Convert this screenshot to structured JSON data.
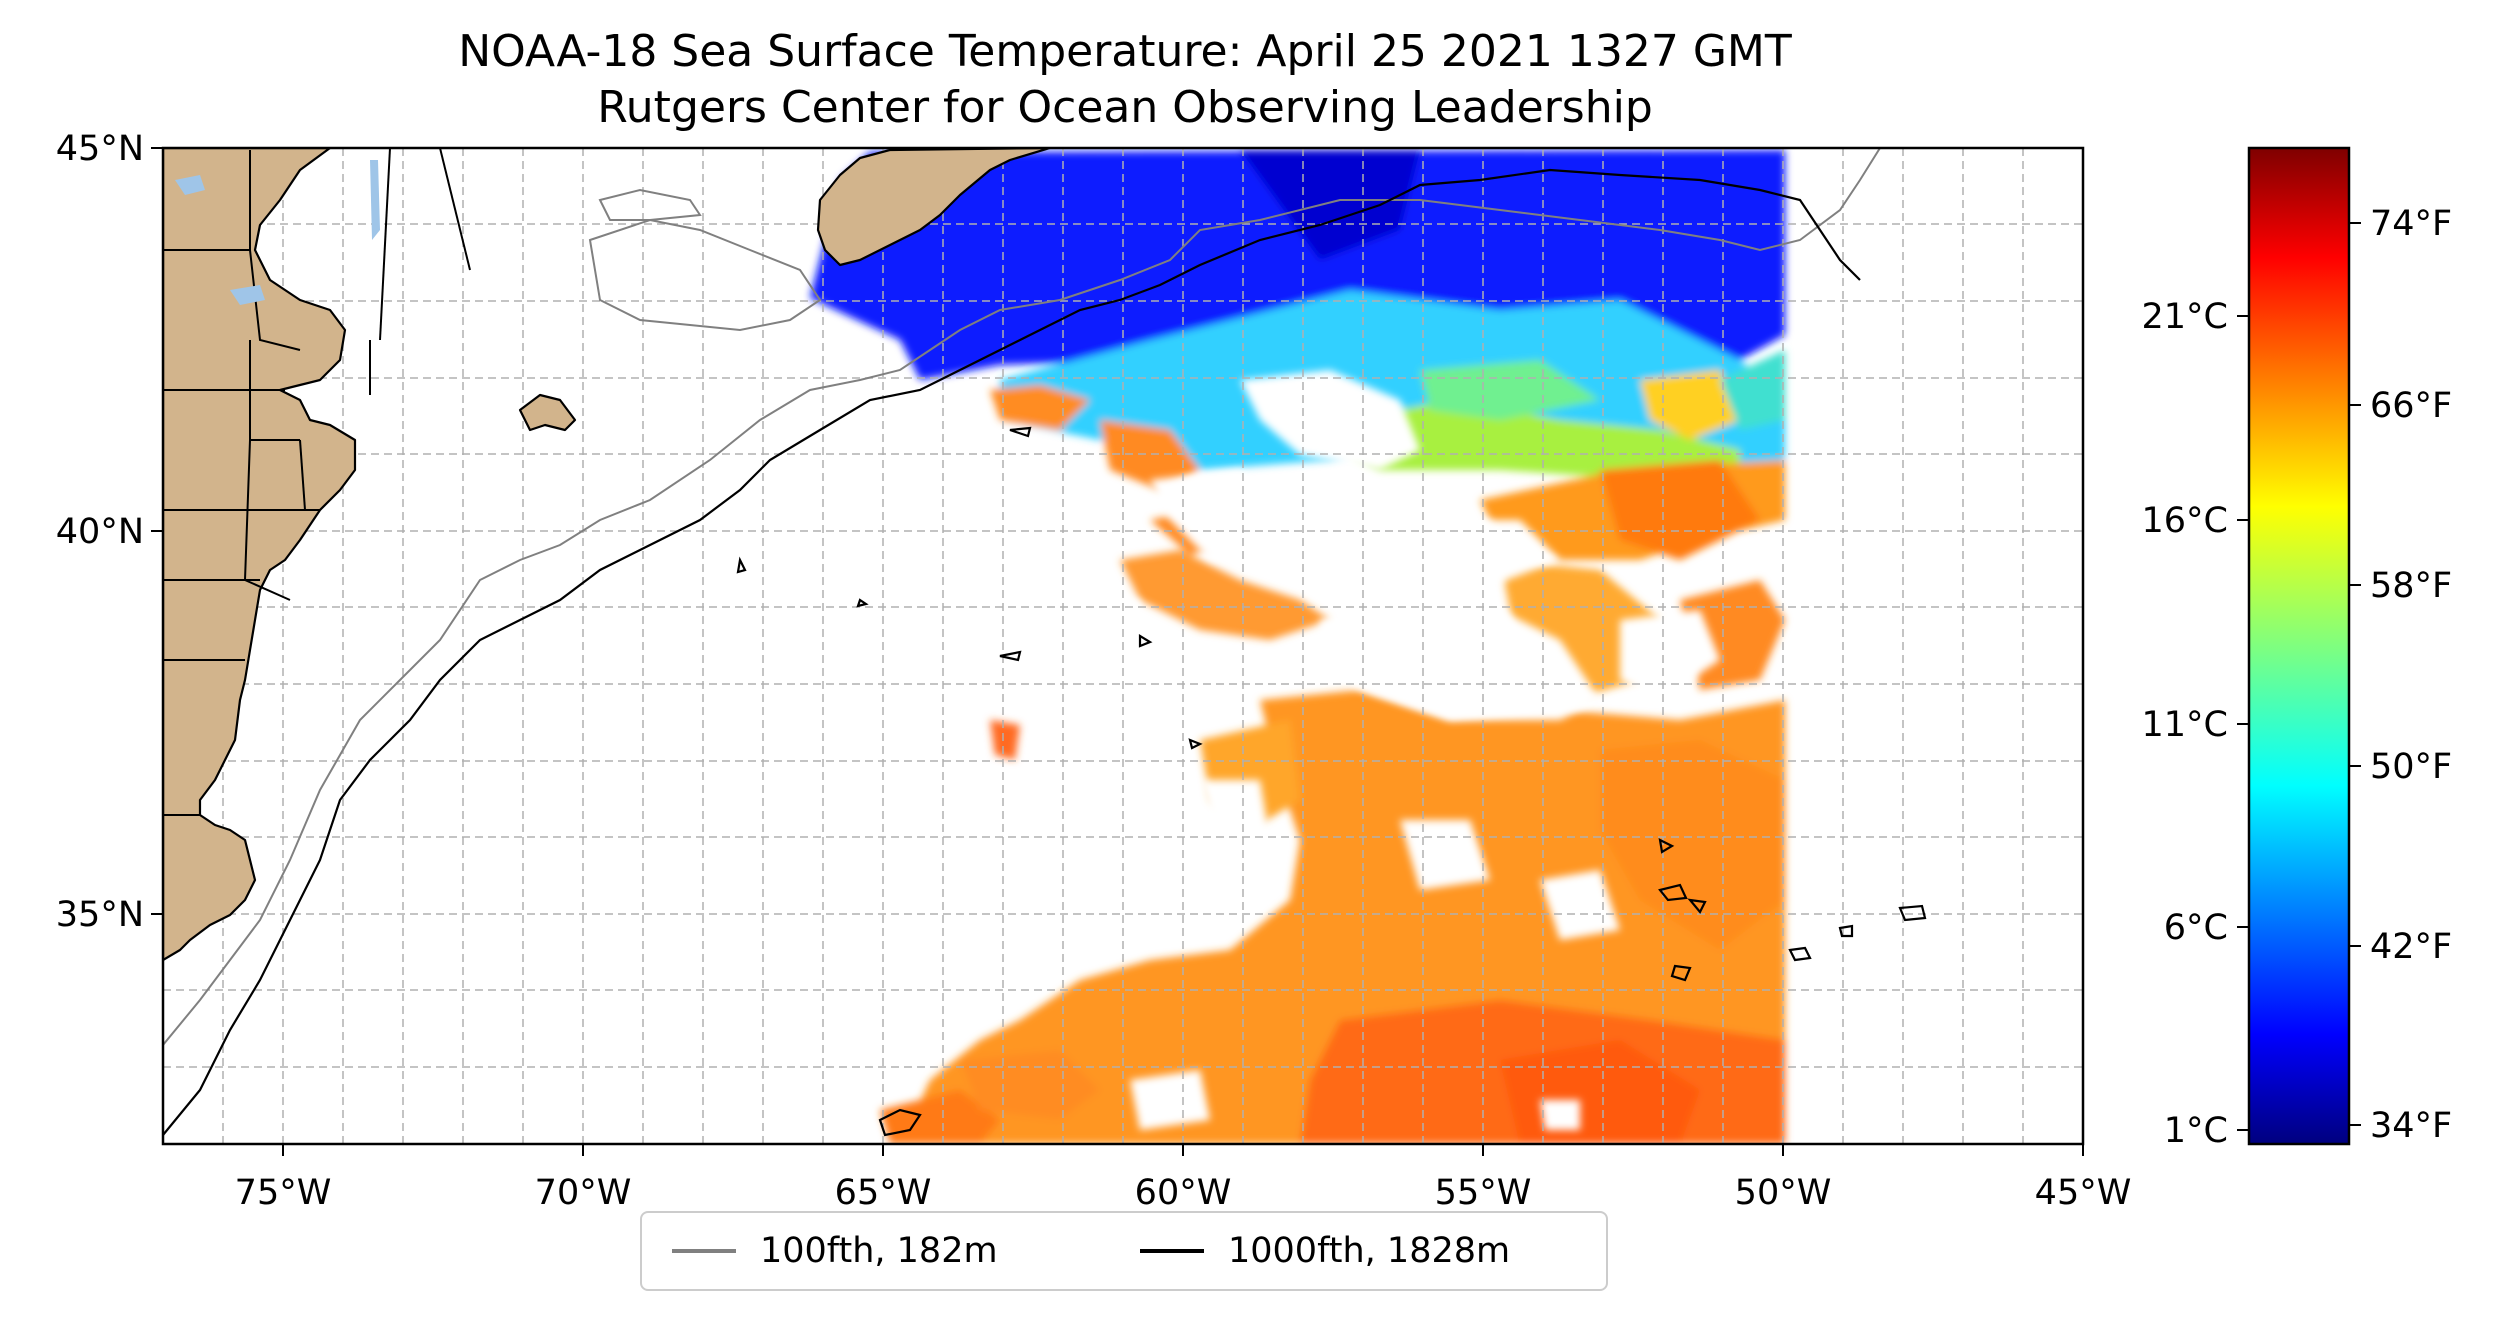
{
  "title": {
    "line1": "NOAA-18 Sea Surface Temperature: April 25 2021 1327 GMT",
    "line2": "Rutgers Center for Ocean Observing Leadership"
  },
  "map": {
    "lon_range": [
      -77,
      -45
    ],
    "lat_range": [
      32,
      45
    ],
    "lon_ticks": [
      "75°W",
      "70°W",
      "65°W",
      "60°W",
      "55°W",
      "50°W",
      "45°W"
    ],
    "lat_ticks": [
      "45°N",
      "40°N",
      "35°N"
    ],
    "land_color": "#d2b48c",
    "lake_color": "#9fc5e8",
    "gridline_color": "#b0b0b0",
    "gridlines": "dashed"
  },
  "legend": {
    "items": [
      {
        "label": "100fth, 182m",
        "color": "#808080"
      },
      {
        "label": "1000fth, 1828m",
        "color": "#000000"
      }
    ]
  },
  "colorbar": {
    "colormap": "jet",
    "celsius_ticks": [
      "21°C",
      "16°C",
      "11°C",
      "6°C",
      "1°C"
    ],
    "fahrenheit_ticks": [
      "74°F",
      "66°F",
      "58°F",
      "50°F",
      "42°F",
      "34°F"
    ]
  }
}
